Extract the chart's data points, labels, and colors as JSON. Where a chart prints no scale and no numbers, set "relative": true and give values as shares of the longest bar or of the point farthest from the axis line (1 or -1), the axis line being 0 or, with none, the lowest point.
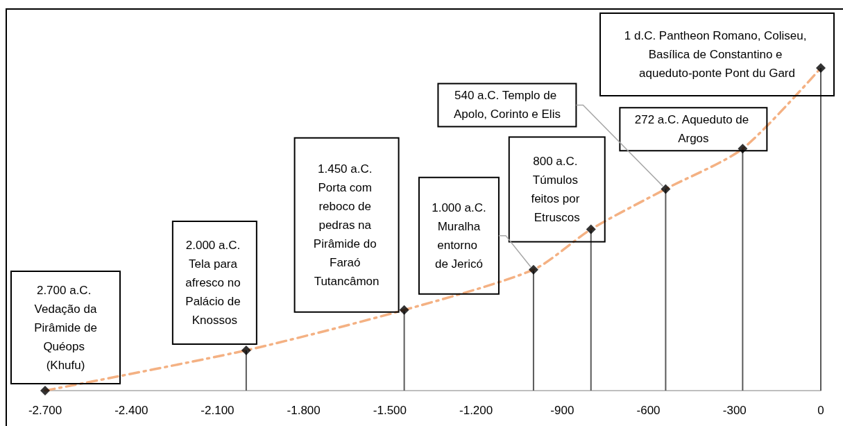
{
  "chart_data": {
    "type": "lollipop",
    "relative": true,
    "x": [
      -2700,
      -2000,
      -1450,
      -1000,
      -800,
      -540,
      -272,
      0
    ],
    "series": [
      {
        "type": "line",
        "color": "#f4b183",
        "line_style": "dashed",
        "marker": "none",
        "x": [
          -2700,
          -2000,
          -1450,
          -1000,
          -800,
          -540,
          -272,
          0
        ],
        "values": [
          0,
          0.125,
          0.25,
          0.375,
          0.5,
          0.625,
          0.75,
          1
        ]
      },
      {
        "color": "#000000",
        "marker": "diamond",
        "values": [
          0,
          0.125,
          0.25,
          0.375,
          0.5,
          0.625,
          0.75,
          1
        ]
      }
    ],
    "xlim": [
      -2700,
      0
    ],
    "xticks": [
      {
        "value": -2700,
        "label": "-2.700"
      },
      {
        "value": -2400,
        "label": "-2.400"
      },
      {
        "value": -2100,
        "label": "-2.100"
      },
      {
        "value": -1800,
        "label": "-1.800"
      },
      {
        "value": -1500,
        "label": "-1.500"
      },
      {
        "value": -1200,
        "label": "-1.200"
      },
      -900,
      -600,
      -300,
      0
    ],
    "grid": false,
    "annotations": [
      {
        "text": "2.700 a.C. Vedação da Pirâmide de Quéops (Khufu)",
        "x": -2700,
        "y": 0
      },
      {
        "text": "2.000 a.C. Tela para afresco no Palácio de Knossos",
        "x": -2000,
        "y": 0.125
      },
      "1.450 a.C. Porta com reboco de pedras na Pirâmide do Faraó Tutancâmon",
      {
        "text": "1.000 a.C. Muralha entorno de Jericó",
        "x": -1000,
        "y": 0.375
      },
      {
        "text": "800 a.C. Túmulos feitos por Etruscos",
        "x": -800,
        "y": 0.5
      },
      "540 a.C. Templo de Apolo, Corinto e Elis",
      {
        "text": "272 a.C. Aqueduto de Argos",
        "x": -272,
        "y": 0.75
      },
      {
        "text": "1 d.C. Pantheon Romano, Coliseu, Basílica de Constantino e aqueduto-ponte Pont du Gard",
        "x": 0,
        "y": 1
      }
    ]
  }
}
